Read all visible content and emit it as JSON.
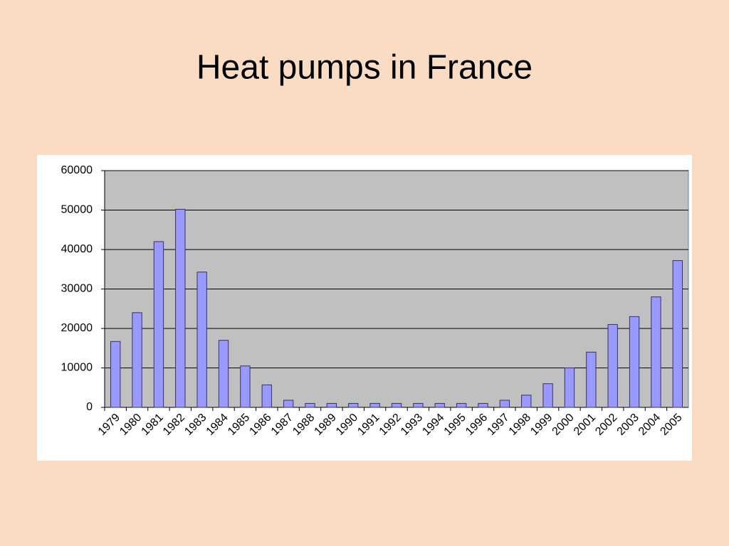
{
  "chart_data": {
    "type": "bar",
    "title": "Heat pumps in France",
    "categories": [
      "1979",
      "1980",
      "1981",
      "1982",
      "1983",
      "1984",
      "1985",
      "1986",
      "1987",
      "1988",
      "1989",
      "1990",
      "1991",
      "1992",
      "1993",
      "1994",
      "1995",
      "1996",
      "1997",
      "1998",
      "1999",
      "2000",
      "2001",
      "2002",
      "2003",
      "2004",
      "2005"
    ],
    "values": [
      16700,
      24000,
      42000,
      50200,
      34300,
      17000,
      10500,
      5700,
      1800,
      1000,
      1000,
      1000,
      1000,
      1000,
      1000,
      1000,
      1000,
      1000,
      1800,
      3100,
      6000,
      10000,
      14000,
      21000,
      23000,
      28000,
      37200
    ],
    "color": "#9999ff",
    "ylim": [
      0,
      60000
    ],
    "yticks": [
      0,
      10000,
      20000,
      30000,
      40000,
      50000,
      60000
    ],
    "grid": true
  }
}
